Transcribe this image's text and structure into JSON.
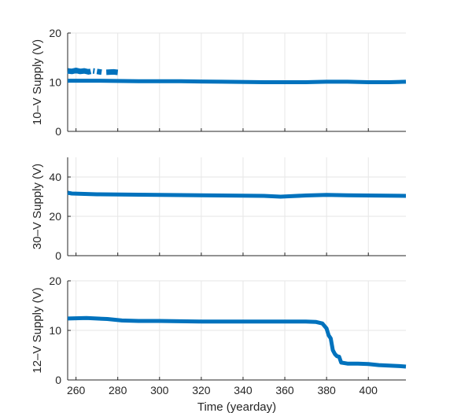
{
  "chart_data": [
    {
      "type": "line",
      "ylabel": "10–V Supply (V)",
      "xlabel": "",
      "xlim": [
        256,
        418
      ],
      "ylim": [
        0,
        20
      ],
      "xticks": [
        260,
        280,
        300,
        320,
        340,
        360,
        380,
        400
      ],
      "yticks": [
        0,
        10,
        20
      ],
      "ytick_labels": [
        "0",
        "10",
        "20"
      ],
      "grid": true,
      "color": "#0072bd",
      "series": [
        {
          "x": [
            256,
            270,
            290,
            310,
            330,
            350,
            360,
            370,
            380,
            390,
            400,
            410,
            418
          ],
          "y": [
            10.3,
            10.3,
            10.2,
            10.2,
            10.1,
            10.0,
            10.0,
            10.0,
            10.1,
            10.1,
            10.0,
            10.0,
            10.1
          ]
        },
        {
          "x": [
            256,
            258,
            260,
            262,
            264,
            266,
            268,
            270,
            273,
            278,
            280
          ],
          "y": [
            12.3,
            12.2,
            12.4,
            12.2,
            12.3,
            12.1,
            12.3,
            12.2,
            12.0,
            12.1,
            12.0
          ]
        }
      ]
    },
    {
      "type": "line",
      "ylabel": "30–V Supply (V)",
      "xlabel": "",
      "xlim": [
        256,
        418
      ],
      "ylim": [
        0,
        50
      ],
      "xticks": [
        260,
        280,
        300,
        320,
        340,
        360,
        380,
        400
      ],
      "yticks": [
        0,
        20,
        40
      ],
      "ytick_labels": [
        "0",
        "20",
        "40"
      ],
      "grid": true,
      "color": "#0072bd",
      "series": [
        {
          "x": [
            256,
            258,
            270,
            290,
            310,
            330,
            350,
            358,
            362,
            370,
            380,
            390,
            400,
            410,
            418
          ],
          "y": [
            32.0,
            31.6,
            31.2,
            31.0,
            30.8,
            30.6,
            30.4,
            30.0,
            30.2,
            30.6,
            30.9,
            30.7,
            30.6,
            30.5,
            30.4
          ]
        }
      ]
    },
    {
      "type": "line",
      "ylabel": "12–V Supply (V)",
      "xlabel": "Time (yearday)",
      "xlim": [
        256,
        418
      ],
      "ylim": [
        0,
        20
      ],
      "xticks": [
        260,
        280,
        300,
        320,
        340,
        360,
        380,
        400
      ],
      "yticks": [
        0,
        10,
        20
      ],
      "ytick_labels": [
        "0",
        "10",
        "20"
      ],
      "xtick_labels": [
        "260",
        "280",
        "300",
        "320",
        "340",
        "360",
        "380",
        "400"
      ],
      "grid": true,
      "color": "#0072bd",
      "series": [
        {
          "x": [
            256,
            265,
            275,
            282,
            290,
            300,
            320,
            340,
            360,
            370,
            375,
            378,
            380,
            381,
            382,
            383,
            384,
            385,
            386,
            387,
            390,
            395,
            400,
            405,
            410,
            415,
            418
          ],
          "y": [
            12.4,
            12.5,
            12.3,
            12.0,
            11.9,
            11.9,
            11.8,
            11.8,
            11.8,
            11.8,
            11.7,
            11.4,
            10.4,
            9.0,
            8.4,
            6.0,
            5.2,
            4.8,
            4.7,
            3.5,
            3.3,
            3.3,
            3.2,
            3.0,
            2.9,
            2.8,
            2.7
          ]
        }
      ]
    }
  ]
}
